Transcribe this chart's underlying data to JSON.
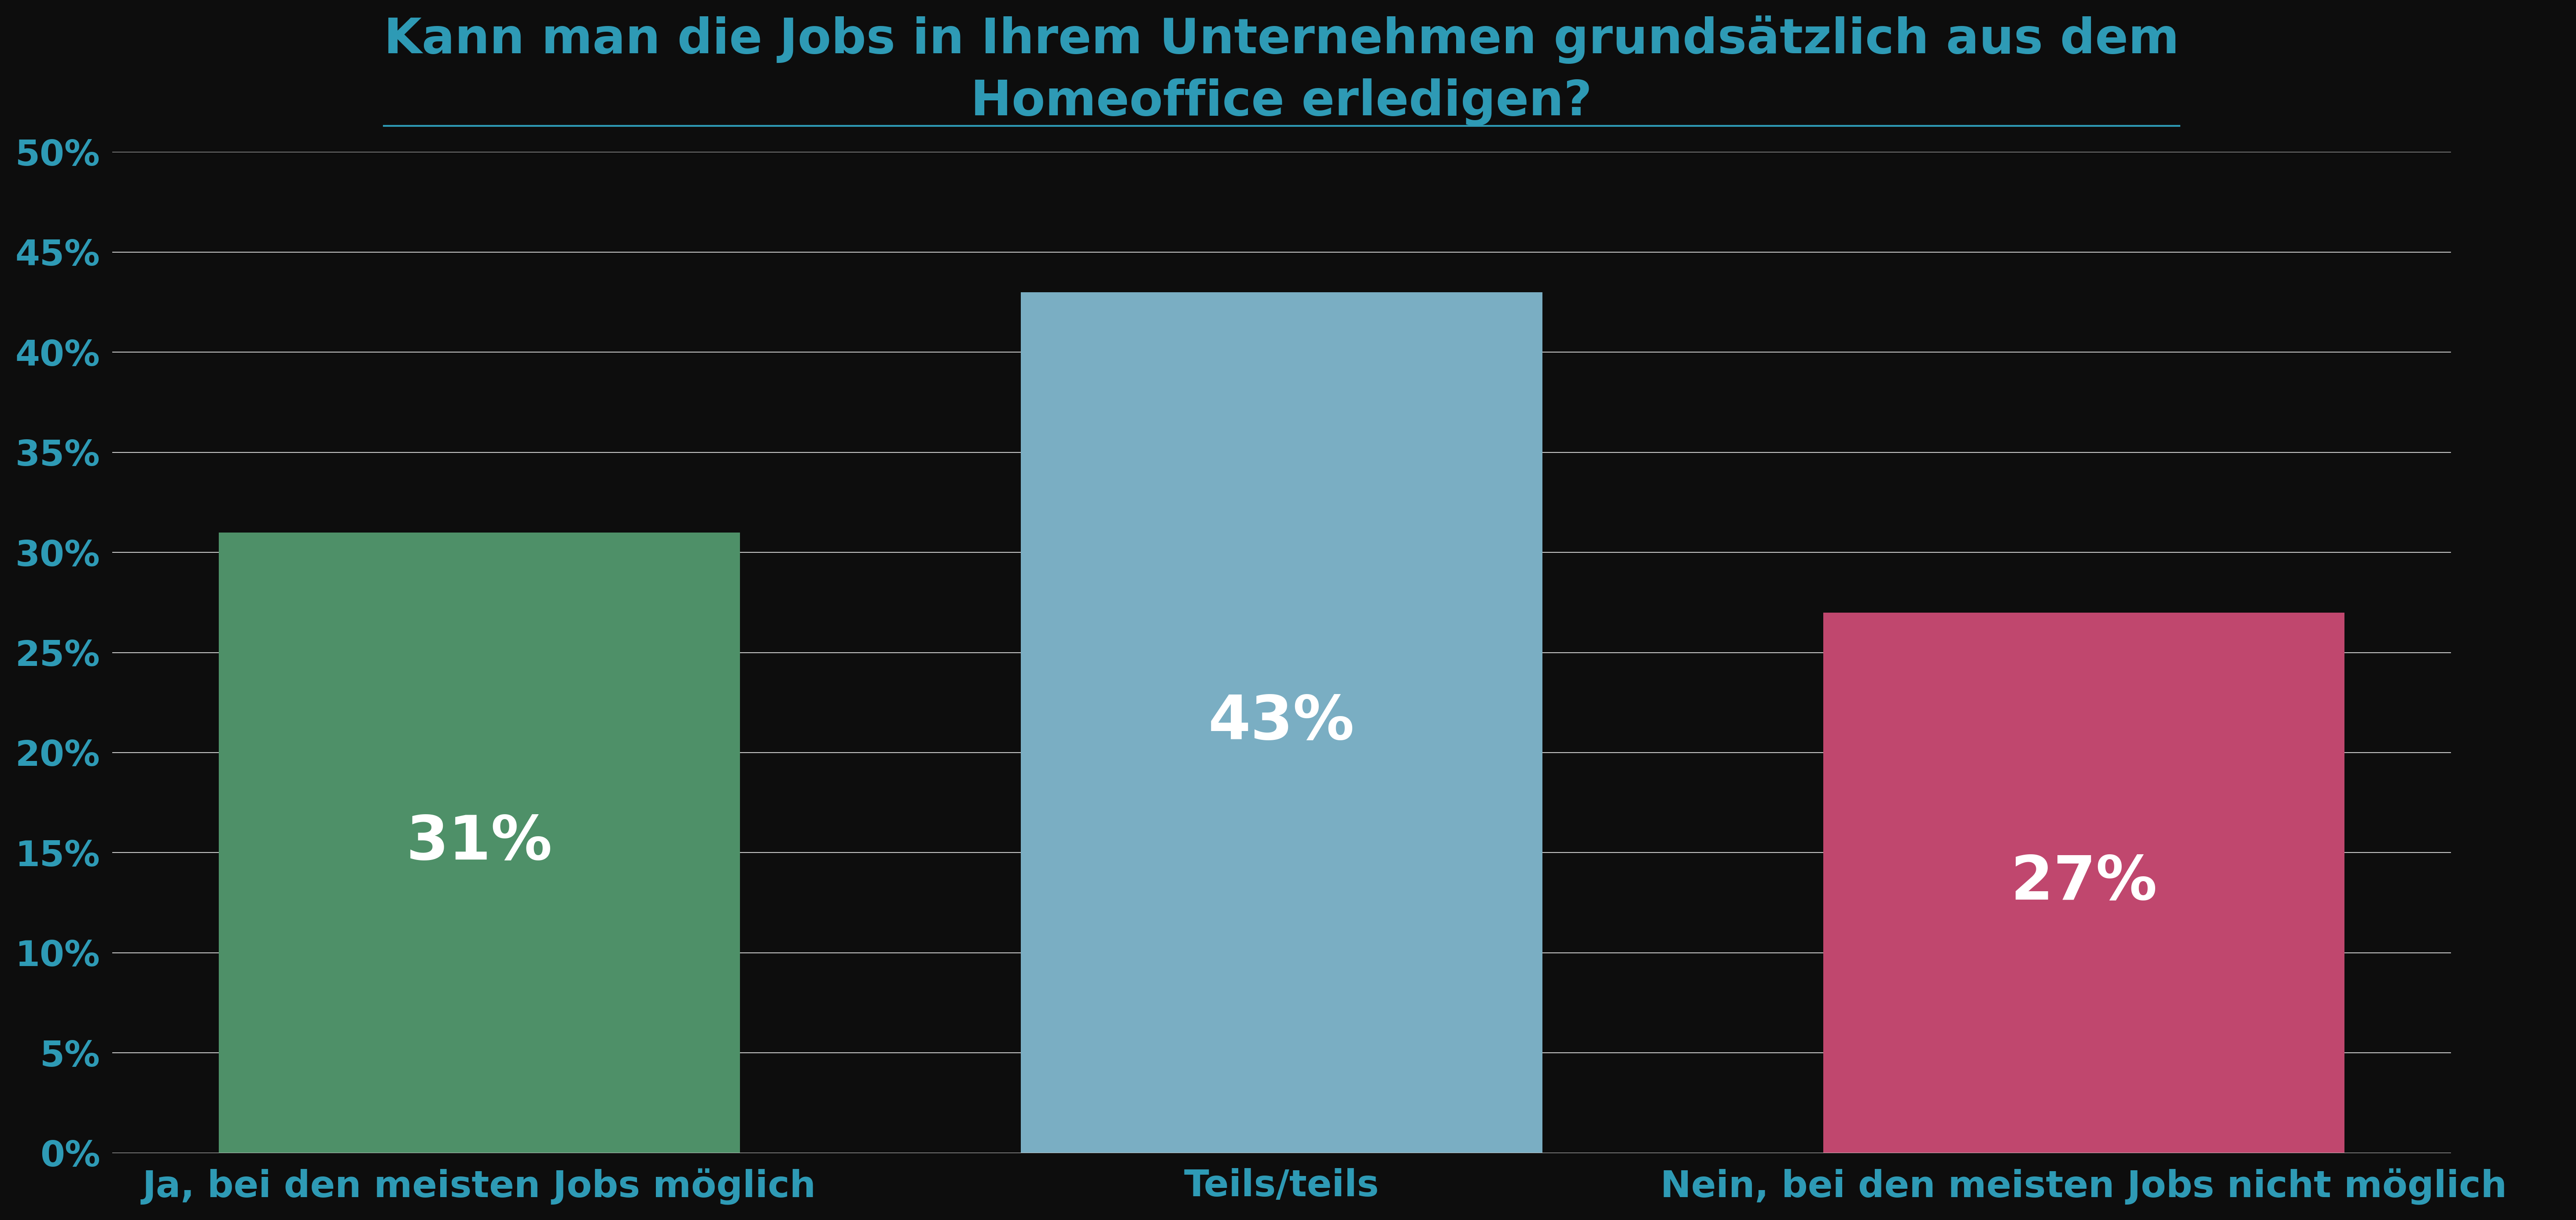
{
  "title_line1": "Kann man die Jobs in Ihrem Unternehmen grundsätzlich aus dem",
  "title_line2": "Homeoffice erledigen?",
  "categories": [
    "Ja, bei den meisten Jobs möglich",
    "Teils/teils",
    "Nein, bei den meisten Jobs nicht möglich"
  ],
  "values": [
    31,
    43,
    27
  ],
  "bar_colors": [
    "#4e9068",
    "#7aaec3",
    "#c0476e"
  ],
  "value_labels": [
    "31%",
    "43%",
    "27%"
  ],
  "background_color": "#0d0d0d",
  "title_color": "#2e9ab5",
  "tick_color": "#2e9ab5",
  "label_color": "#2e9ab5",
  "value_label_color": "#ffffff",
  "gridline_color": "#c8c8c8",
  "ylim": [
    0,
    50
  ],
  "yticks": [
    0,
    5,
    10,
    15,
    20,
    25,
    30,
    35,
    40,
    45,
    50
  ],
  "ytick_labels": [
    "0%",
    "5%",
    "10%",
    "15%",
    "20%",
    "25%",
    "30%",
    "35%",
    "40%",
    "45%",
    "50%"
  ],
  "title_fontsize": 80,
  "tick_fontsize": 58,
  "label_fontsize": 60,
  "value_label_fontsize": 100,
  "bar_width": 0.65
}
